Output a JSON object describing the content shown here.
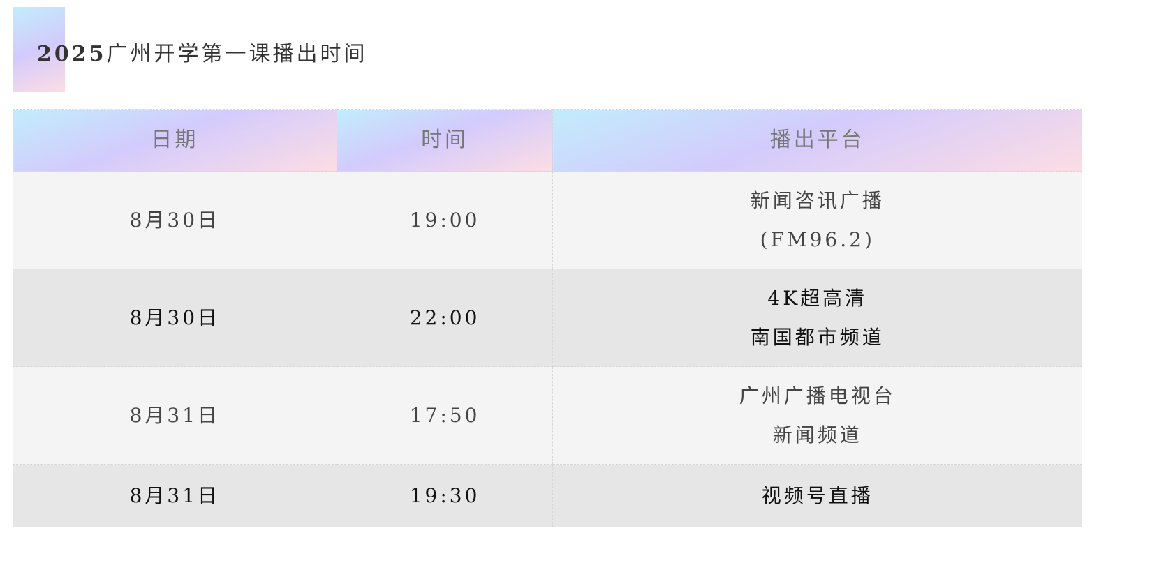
{
  "title": {
    "year": "2025",
    "text": "广州开学第一课播出时间"
  },
  "table": {
    "headers": [
      "日期",
      "时间",
      "播出平台"
    ],
    "rows": [
      {
        "date": "8月30日",
        "time": "19:00",
        "platform": [
          "新闻咨讯广播",
          "(FM96.2)"
        ]
      },
      {
        "date": "8月30日",
        "time": "22:00",
        "platform": [
          "4K超高清",
          "南国都市频道"
        ]
      },
      {
        "date": "8月31日",
        "time": "17:50",
        "platform": [
          "广州广播电视台",
          "新闻频道"
        ]
      },
      {
        "date": "8月31日",
        "time": "19:30",
        "platform": [
          "视频号直播"
        ]
      }
    ]
  },
  "colors": {
    "gradient_start": "#c2ecfc",
    "gradient_mid": "#d3cbfc",
    "gradient_end": "#fddde4",
    "row_light": "#f4f4f4",
    "row_dark": "#e6e6e6"
  }
}
